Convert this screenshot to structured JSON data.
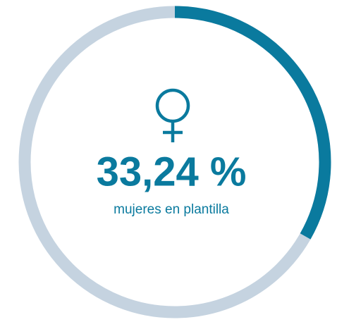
{
  "chart_data": {
    "type": "gauge",
    "values": [
      33.24
    ],
    "value_labels": [
      "33,24 %"
    ],
    "subtitle": "mujeres en plantilla",
    "ylim": [
      0,
      100
    ],
    "color": "#0a7a9e",
    "track_color": "#c5d3e0"
  }
}
